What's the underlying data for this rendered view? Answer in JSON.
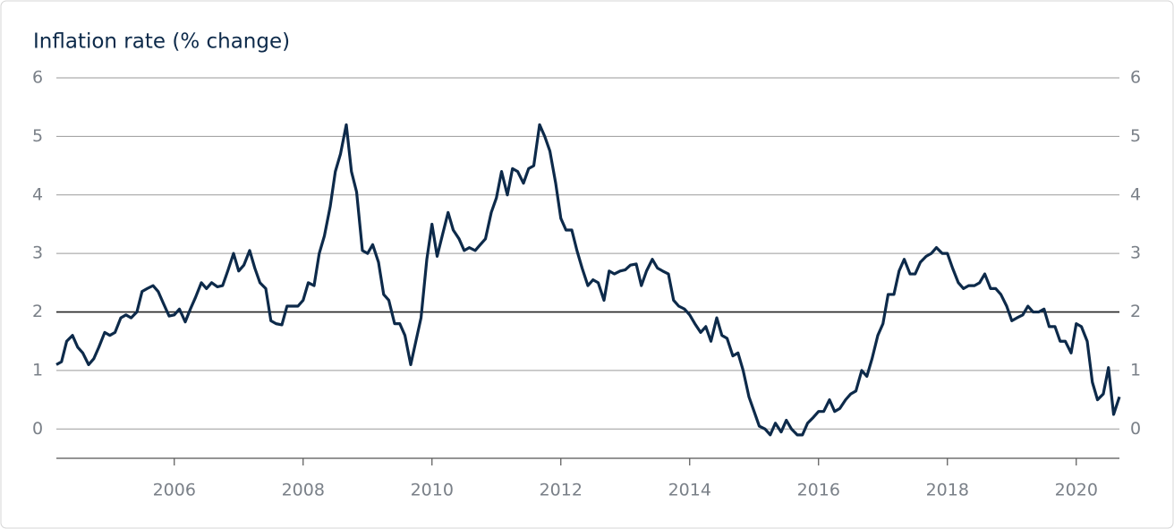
{
  "chart_data": {
    "type": "line",
    "title": "Inflation rate (% change)",
    "x": [
      2004.17,
      2004.25,
      2004.33,
      2004.42,
      2004.5,
      2004.58,
      2004.67,
      2004.75,
      2004.83,
      2004.92,
      2005,
      2005.08,
      2005.17,
      2005.25,
      2005.33,
      2005.42,
      2005.5,
      2005.58,
      2005.67,
      2005.75,
      2005.83,
      2005.92,
      2006,
      2006.08,
      2006.17,
      2006.25,
      2006.33,
      2006.42,
      2006.5,
      2006.58,
      2006.67,
      2006.75,
      2006.83,
      2006.92,
      2007,
      2007.08,
      2007.17,
      2007.25,
      2007.33,
      2007.42,
      2007.5,
      2007.58,
      2007.67,
      2007.75,
      2007.83,
      2007.92,
      2008,
      2008.08,
      2008.17,
      2008.25,
      2008.33,
      2008.42,
      2008.5,
      2008.58,
      2008.67,
      2008.75,
      2008.83,
      2008.92,
      2009,
      2009.08,
      2009.17,
      2009.25,
      2009.33,
      2009.42,
      2009.5,
      2009.58,
      2009.67,
      2009.75,
      2009.83,
      2009.92,
      2010,
      2010.08,
      2010.17,
      2010.25,
      2010.33,
      2010.42,
      2010.5,
      2010.58,
      2010.67,
      2010.75,
      2010.83,
      2010.92,
      2011,
      2011.08,
      2011.17,
      2011.25,
      2011.33,
      2011.42,
      2011.5,
      2011.58,
      2011.67,
      2011.75,
      2011.83,
      2011.92,
      2012,
      2012.08,
      2012.17,
      2012.25,
      2012.33,
      2012.42,
      2012.5,
      2012.58,
      2012.67,
      2012.75,
      2012.83,
      2012.92,
      2013,
      2013.08,
      2013.17,
      2013.25,
      2013.33,
      2013.42,
      2013.5,
      2013.58,
      2013.67,
      2013.75,
      2013.83,
      2013.92,
      2014,
      2014.08,
      2014.17,
      2014.25,
      2014.33,
      2014.42,
      2014.5,
      2014.58,
      2014.67,
      2014.75,
      2014.83,
      2014.92,
      2015,
      2015.08,
      2015.17,
      2015.25,
      2015.33,
      2015.42,
      2015.5,
      2015.58,
      2015.67,
      2015.75,
      2015.83,
      2015.92,
      2016,
      2016.08,
      2016.17,
      2016.25,
      2016.33,
      2016.42,
      2016.5,
      2016.58,
      2016.67,
      2016.75,
      2016.83,
      2016.92,
      2017,
      2017.08,
      2017.17,
      2017.25,
      2017.33,
      2017.42,
      2017.5,
      2017.58,
      2017.67,
      2017.75,
      2017.83,
      2017.92,
      2018,
      2018.08,
      2018.17,
      2018.25,
      2018.33,
      2018.42,
      2018.5,
      2018.58,
      2018.67,
      2018.75,
      2018.83,
      2018.92,
      2019,
      2019.08,
      2019.17,
      2019.25,
      2019.33,
      2019.42,
      2019.5,
      2019.58,
      2019.67,
      2019.75,
      2019.83,
      2019.92,
      2020,
      2020.08,
      2020.17,
      2020.25,
      2020.33,
      2020.42,
      2020.5,
      2020.58,
      2020.67
    ],
    "series": [
      {
        "color": "#0d2a4a",
        "values": [
          1.1,
          1.15,
          1.5,
          1.6,
          1.4,
          1.3,
          1.1,
          1.2,
          1.4,
          1.65,
          1.6,
          1.65,
          1.9,
          1.95,
          1.9,
          2.0,
          2.35,
          2.4,
          2.45,
          2.35,
          2.15,
          1.93,
          1.95,
          2.05,
          1.83,
          2.05,
          2.25,
          2.5,
          2.4,
          2.5,
          2.43,
          2.45,
          2.7,
          3.0,
          2.7,
          2.8,
          3.05,
          2.75,
          2.5,
          2.4,
          1.85,
          1.8,
          1.78,
          2.1,
          2.1,
          2.1,
          2.2,
          2.5,
          2.45,
          3.0,
          3.3,
          3.8,
          4.4,
          4.7,
          5.2,
          4.4,
          4.05,
          3.05,
          3.0,
          3.15,
          2.85,
          2.3,
          2.2,
          1.8,
          1.8,
          1.6,
          1.1,
          1.5,
          1.9,
          2.9,
          3.5,
          2.95,
          3.35,
          3.7,
          3.4,
          3.25,
          3.05,
          3.1,
          3.05,
          3.15,
          3.25,
          3.7,
          3.95,
          4.4,
          4.0,
          4.45,
          4.4,
          4.2,
          4.45,
          4.5,
          5.2,
          5.0,
          4.75,
          4.2,
          3.6,
          3.4,
          3.4,
          3.05,
          2.75,
          2.45,
          2.55,
          2.5,
          2.2,
          2.7,
          2.65,
          2.7,
          2.72,
          2.8,
          2.82,
          2.45,
          2.7,
          2.9,
          2.75,
          2.7,
          2.65,
          2.2,
          2.1,
          2.05,
          1.95,
          1.8,
          1.65,
          1.75,
          1.5,
          1.9,
          1.6,
          1.55,
          1.25,
          1.3,
          1.0,
          0.55,
          0.3,
          0.05,
          0.0,
          -0.1,
          0.1,
          -0.05,
          0.15,
          0.0,
          -0.1,
          -0.1,
          0.1,
          0.2,
          0.3,
          0.3,
          0.5,
          0.3,
          0.35,
          0.5,
          0.6,
          0.65,
          1.0,
          0.9,
          1.2,
          1.6,
          1.8,
          2.3,
          2.3,
          2.7,
          2.9,
          2.65,
          2.65,
          2.85,
          2.95,
          3.0,
          3.1,
          3.0,
          3.0,
          2.75,
          2.5,
          2.4,
          2.45,
          2.45,
          2.5,
          2.65,
          2.4,
          2.4,
          2.3,
          2.1,
          1.85,
          1.9,
          1.95,
          2.1,
          2.0,
          2.0,
          2.05,
          1.75,
          1.75,
          1.5,
          1.5,
          1.3,
          1.8,
          1.75,
          1.5,
          0.8,
          0.5,
          0.6,
          1.05,
          0.25,
          0.55
        ]
      }
    ],
    "xlim": [
      2004.17,
      2020.67
    ],
    "xticks": [
      2006,
      2008,
      2010,
      2012,
      2014,
      2016,
      2018,
      2020
    ],
    "ylim": [
      -0.5,
      6
    ],
    "yticks": [
      0,
      1,
      2,
      3,
      4,
      5,
      6
    ],
    "grid": true,
    "reference_line": 2
  }
}
